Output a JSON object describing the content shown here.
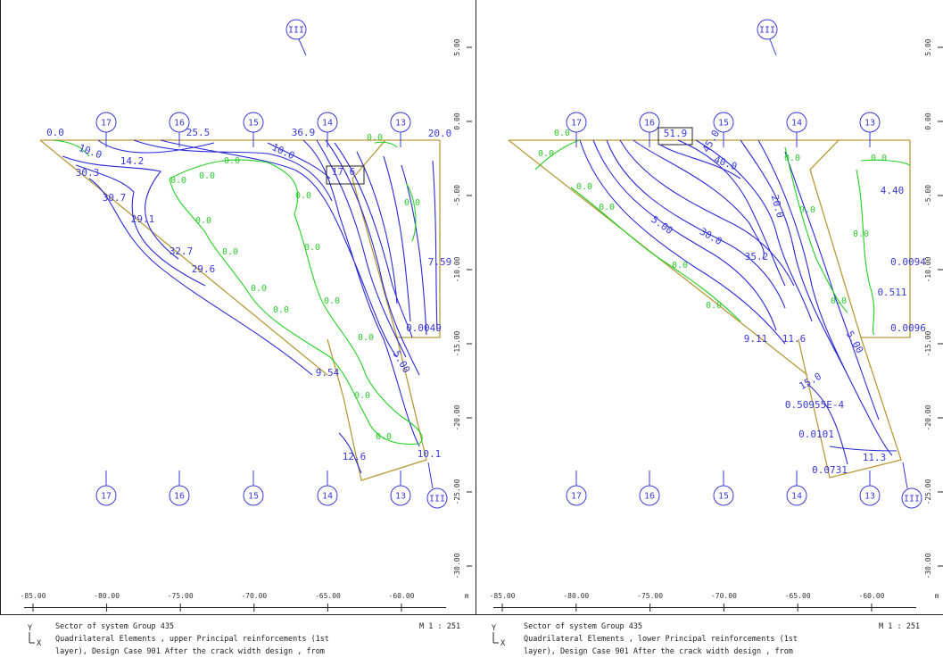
{
  "panels": [
    {
      "x_ticks": [
        "-85.00",
        "-80.00",
        "-75.00",
        "-70.00",
        "-65.00",
        "-60.00"
      ],
      "x_unit": "m",
      "y_ticks": [
        "5.00",
        "0.00",
        "-5.00",
        "-10.00",
        "-15.00",
        "-20.00",
        "-25.00",
        "-30.00"
      ],
      "grid_labels_top": [
        "17",
        "16",
        "15",
        "14",
        "13"
      ],
      "section_top": "III",
      "grid_labels_bottom": [
        "17",
        "16",
        "15",
        "14",
        "13"
      ],
      "section_bottom": "III",
      "contour_labels": [
        "0.0",
        "25.5",
        "36.9",
        "20.0",
        "10.0",
        "14.2",
        "30.3",
        "30.7",
        "29.1",
        "32.7",
        "29.6",
        "17.6",
        "7.59",
        "0.0049",
        "9.54",
        "5.00",
        "12.6",
        "10.1",
        "10.0",
        "0.0",
        "0.0",
        "0.0",
        "0.0",
        "0.0",
        "0.0",
        "0.0",
        "0.0",
        "0.0",
        "0.0",
        "0.0",
        "0.0",
        "0.0",
        "0.0",
        "0.0"
      ],
      "footer": {
        "icon_y": "Y",
        "icon_x": "X",
        "line1": "Sector of system Group 435",
        "scale": "M 1 : 251",
        "line2": "Quadrilateral Elements , upper Principal reinforcements (1st",
        "line3": "layer), Design Case 901 After the crack width design    , from"
      }
    },
    {
      "x_ticks": [
        "-85.00",
        "-80.00",
        "-75.00",
        "-70.00",
        "-65.00",
        "-60.00"
      ],
      "x_unit": "m",
      "y_ticks": [
        "5.00",
        "0.00",
        "-5.00",
        "-10.00",
        "-15.00",
        "-20.00",
        "-25.00",
        "-30.00"
      ],
      "grid_labels_top": [
        "17",
        "16",
        "15",
        "14",
        "13"
      ],
      "section_top": "III",
      "grid_labels_bottom": [
        "17",
        "16",
        "15",
        "14",
        "13"
      ],
      "section_bottom": "III",
      "contour_labels": [
        "51.9",
        "45.0",
        "40.0",
        "5.00",
        "30.0",
        "35.2",
        "20.0",
        "4.40",
        "0.0094",
        "0.511",
        "0.0096",
        "9.11",
        "11.6",
        "5.00",
        "15.0",
        "0.50955E-4",
        "0.0101",
        "0.0731",
        "11.3",
        "0.0",
        "0.0",
        "0.0",
        "0.0",
        "0.0",
        "0.0",
        "0.0",
        "0.0",
        "0.0",
        "0.0",
        "0.0"
      ],
      "footer": {
        "icon_y": "Y",
        "icon_x": "X",
        "line1": "Sector of system Group 435",
        "scale": "M 1 : 251",
        "line2": "Quadrilateral Elements , lower Principal reinforcements (1st",
        "line3": "layer), Design Case 901 After the crack width design    , from"
      }
    }
  ]
}
